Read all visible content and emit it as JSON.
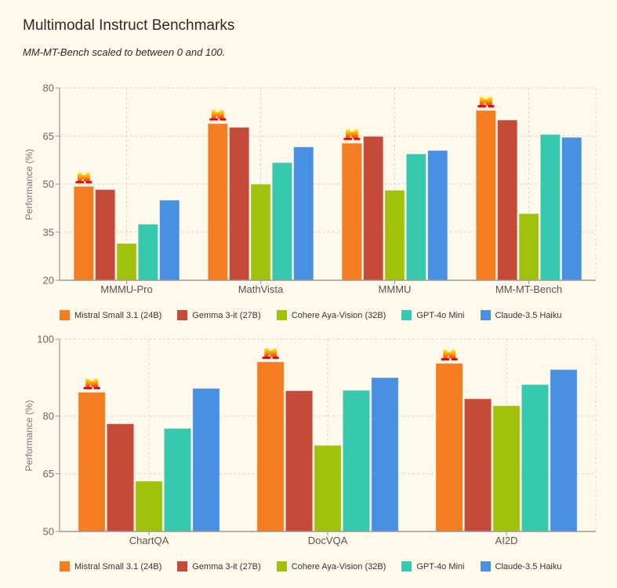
{
  "header": {
    "title": "Multimodal Instruct Benchmarks",
    "subtitle": "MM-MT-Bench scaled to between 0 and 100."
  },
  "colors": {
    "Mistral Small 3.1 (24B)": "#f47d22",
    "Gemma 3-it (27B)": "#c44b39",
    "Cohere Aya-Vision (32B)": "#a0c20d",
    "GPT-4o Mini": "#36c9ad",
    "Claude-3.5 Haiku": "#4a90e2"
  },
  "chart_data": [
    {
      "type": "bar",
      "title": "",
      "xlabel": "",
      "ylabel": "Performance (%)",
      "ylim": [
        20,
        80
      ],
      "yticks": [
        20,
        35,
        50,
        65,
        80
      ],
      "grid": true,
      "legend_position": "bottom",
      "highlight_icon": "mistral-logo-icon",
      "highlight_series": "Mistral Small 3.1 (24B)",
      "categories": [
        "MMMU-Pro",
        "MathVista",
        "MMMU",
        "MM-MT-Bench"
      ],
      "series": [
        {
          "name": "Mistral Small 3.1 (24B)",
          "values": [
            49.3,
            68.9,
            62.8,
            73.0
          ]
        },
        {
          "name": "Gemma 3-it (27B)",
          "values": [
            48.3,
            67.7,
            64.9,
            70.0
          ]
        },
        {
          "name": "Cohere Aya-Vision (32B)",
          "values": [
            31.5,
            50.0,
            48.1,
            40.8
          ]
        },
        {
          "name": "GPT-4o Mini",
          "values": [
            37.5,
            56.7,
            59.4,
            65.5
          ]
        },
        {
          "name": "Claude-3.5 Haiku",
          "values": [
            45.0,
            61.6,
            60.5,
            64.6
          ]
        }
      ]
    },
    {
      "type": "bar",
      "title": "",
      "xlabel": "",
      "ylabel": "Performance (%)",
      "ylim": [
        50,
        100
      ],
      "yticks": [
        50,
        65,
        80,
        100
      ],
      "grid": true,
      "legend_position": "bottom",
      "highlight_icon": "mistral-logo-icon",
      "highlight_series": "Mistral Small 3.1 (24B)",
      "categories": [
        "ChartQA",
        "DocVQA",
        "AI2D"
      ],
      "series": [
        {
          "name": "Mistral Small 3.1 (24B)",
          "values": [
            86.2,
            94.1,
            93.7
          ]
        },
        {
          "name": "Gemma 3-it (27B)",
          "values": [
            78.0,
            86.6,
            84.5
          ]
        },
        {
          "name": "Cohere Aya-Vision (32B)",
          "values": [
            63.1,
            72.4,
            82.7
          ]
        },
        {
          "name": "GPT-4o Mini",
          "values": [
            76.8,
            86.7,
            88.2
          ]
        },
        {
          "name": "Claude-3.5 Haiku",
          "values": [
            87.2,
            90.0,
            92.1
          ]
        }
      ]
    }
  ]
}
